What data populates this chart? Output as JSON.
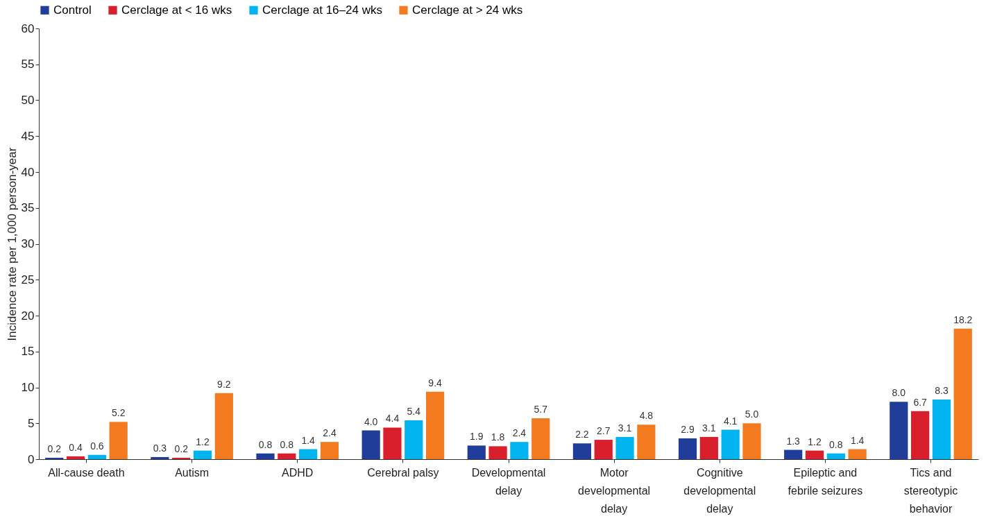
{
  "chart_data": {
    "type": "bar",
    "ylabel": "Incidence rate per 1,000 person-year",
    "categories": [
      "All-cause death",
      "Autism",
      "ADHD",
      "Cerebral palsy",
      "Developmental delay",
      "Motor developmental delay",
      "Cognitive developmental delay",
      "Epileptic and febrile seizures",
      "Tics and stereotypic behavior"
    ],
    "series": [
      {
        "name": "Control",
        "color": "#1f3d99",
        "values": [
          0.2,
          0.3,
          0.8,
          4.0,
          1.9,
          2.2,
          2.9,
          1.3,
          8.0
        ],
        "value_labels": [
          "0.2",
          "0.3",
          "0.8",
          "4.0",
          "1.9",
          "2.2",
          "2.9",
          "1.3",
          "8.0"
        ]
      },
      {
        "name": "Cerclage at < 16 wks",
        "color": "#d91f2b",
        "values": [
          0.4,
          0.2,
          0.8,
          4.4,
          1.8,
          2.7,
          3.1,
          1.2,
          6.7
        ],
        "value_labels": [
          "0.4",
          "0.2",
          "0.8",
          "4.4",
          "1.8",
          "2.7",
          "3.1",
          "1.2",
          "6.7"
        ]
      },
      {
        "name": "Cerclage at 16–24 wks",
        "color": "#00b4f0",
        "values": [
          0.6,
          1.2,
          1.4,
          5.4,
          2.4,
          3.1,
          4.1,
          0.8,
          8.3
        ],
        "value_labels": [
          "0.6",
          "1.2",
          "1.4",
          "5.4",
          "2.4",
          "3.1",
          "4.1",
          "0.8",
          "8.3"
        ]
      },
      {
        "name": "Cerclage at > 24 wks",
        "color": "#f47a20",
        "values": [
          5.2,
          9.2,
          2.4,
          9.4,
          5.7,
          4.8,
          5.0,
          1.4,
          18.2
        ],
        "value_labels": [
          "5.2",
          "9.2",
          "2.4",
          "9.4",
          "5.7",
          "4.8",
          "5.0",
          "1.4",
          "18.2"
        ]
      }
    ],
    "ylim": [
      0,
      60
    ],
    "yticks": [
      0,
      5,
      10,
      15,
      20,
      25,
      30,
      35,
      40,
      45,
      50,
      55,
      60
    ],
    "grid": false,
    "legend": "top"
  }
}
